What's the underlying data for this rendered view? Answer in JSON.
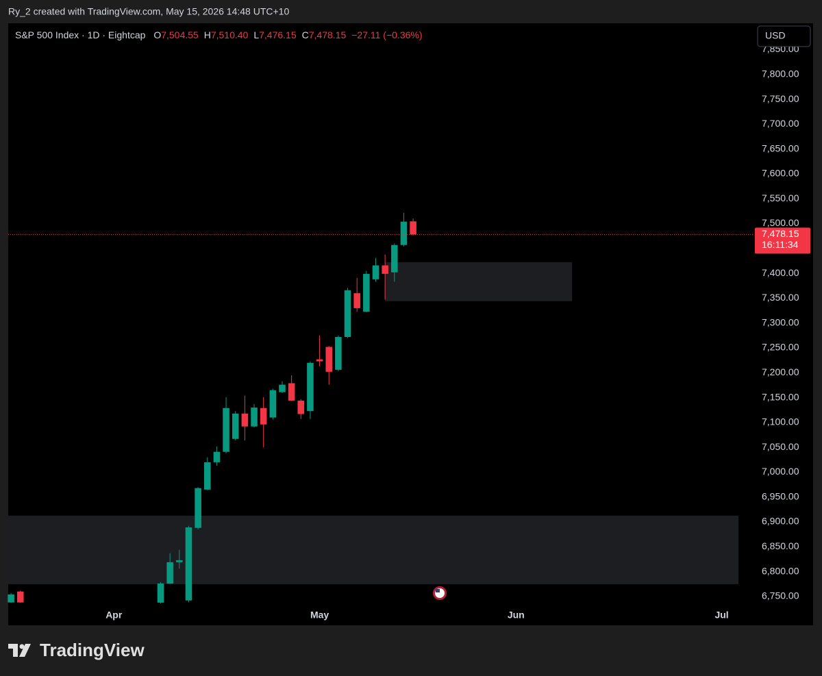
{
  "header": {
    "credit": "Ry_2 created with TradingView.com, May 15, 2026 14:48 UTC+10"
  },
  "footer": {
    "logo": "TradingView"
  },
  "chart_data": {
    "type": "candlestick",
    "title": "S&P 500 Index · 1D · Eightcap",
    "legend_values": [
      {
        "key": "O",
        "value": 7504.55,
        "label": "7,504.55"
      },
      {
        "key": "H",
        "value": 7510.4,
        "label": "7,510.40"
      },
      {
        "key": "L",
        "value": 7476.15,
        "label": "7,476.15"
      },
      {
        "key": "C",
        "value": 7478.15,
        "label": "7,478.15"
      }
    ],
    "change_label": "−27.11 (−0.36%)",
    "currency": "USD",
    "up_color": "#089981",
    "down_color": "#f23645",
    "candles": [
      {
        "x": 0,
        "open": 6738,
        "high": 6757,
        "low": 6737,
        "close": 6754
      },
      {
        "x": 1,
        "open": 6760,
        "high": 6762,
        "low": 6737,
        "close": 6738
      },
      {
        "x": 16,
        "open": 6737.6,
        "high": 6778.9,
        "low": 6736.2,
        "close": 6776.2
      },
      {
        "x": 17,
        "open": 6776,
        "high": 6837,
        "low": 6775,
        "close": 6819
      },
      {
        "x": 18,
        "open": 6819,
        "high": 6844,
        "low": 6806,
        "close": 6823
      },
      {
        "x": 19,
        "open": 6742,
        "high": 6892,
        "low": 6738,
        "close": 6889
      },
      {
        "x": 20,
        "open": 6888,
        "high": 6970,
        "low": 6885,
        "close": 6968
      },
      {
        "x": 21,
        "open": 6965,
        "high": 7030,
        "low": 6964,
        "close": 7020
      },
      {
        "x": 22,
        "open": 7020,
        "high": 7052,
        "low": 7013,
        "close": 7041
      },
      {
        "x": 23,
        "open": 7041,
        "high": 7151,
        "low": 7038,
        "close": 7129
      },
      {
        "x": 24,
        "open": 7067,
        "high": 7123,
        "low": 7064,
        "close": 7118
      },
      {
        "x": 25,
        "open": 7118,
        "high": 7154,
        "low": 7064,
        "close": 7092
      },
      {
        "x": 26,
        "open": 7092,
        "high": 7137,
        "low": 7090,
        "close": 7130
      },
      {
        "x": 27,
        "open": 7129,
        "high": 7151,
        "low": 7050,
        "close": 7096
      },
      {
        "x": 28,
        "open": 7110,
        "high": 7168,
        "low": 7106,
        "close": 7165
      },
      {
        "x": 29,
        "open": 7161,
        "high": 7183,
        "low": 7159,
        "close": 7176
      },
      {
        "x": 30,
        "open": 7179,
        "high": 7195,
        "low": 7143,
        "close": 7144
      },
      {
        "x": 31,
        "open": 7144,
        "high": 7147,
        "low": 7107,
        "close": 7117
      },
      {
        "x": 32,
        "open": 7123,
        "high": 7223,
        "low": 7107,
        "close": 7220
      },
      {
        "x": 33,
        "open": 7227,
        "high": 7275,
        "low": 7213,
        "close": 7223
      },
      {
        "x": 34,
        "open": 7252,
        "high": 7254,
        "low": 7176,
        "close": 7202
      },
      {
        "x": 35,
        "open": 7206,
        "high": 7275,
        "low": 7203,
        "close": 7272
      },
      {
        "x": 36,
        "open": 7272,
        "high": 7371,
        "low": 7270,
        "close": 7366
      },
      {
        "x": 37,
        "open": 7360,
        "high": 7391,
        "low": 7323,
        "close": 7330
      },
      {
        "x": 38,
        "open": 7323,
        "high": 7405,
        "low": 7322,
        "close": 7399
      },
      {
        "x": 39,
        "open": 7388,
        "high": 7431,
        "low": 7383,
        "close": 7416
      },
      {
        "x": 40,
        "open": 7416,
        "high": 7438,
        "low": 7347,
        "close": 7399
      },
      {
        "x": 41,
        "open": 7402,
        "high": 7460,
        "low": 7383,
        "close": 7457
      },
      {
        "x": 42,
        "open": 7457,
        "high": 7522,
        "low": 7454,
        "close": 7504
      },
      {
        "x": 43,
        "open": 7504.55,
        "high": 7510.4,
        "low": 7476.15,
        "close": 7478.15
      }
    ],
    "zones": [
      {
        "start": -0.3,
        "end": 77.8,
        "top": 6912.6,
        "bottom": 6774.8,
        "color": "#1c1e21"
      },
      {
        "start": 40,
        "end": 60,
        "top": 7422.5,
        "bottom": 7344,
        "color": "#1c1e21"
      }
    ],
    "last_price": {
      "value": 7478.15,
      "label": "7,478.15"
    },
    "countdown": "16:11:34",
    "xlim": [
      -0.3,
      79.4
    ],
    "xticks": [
      {
        "value": 11,
        "label": "Apr"
      },
      {
        "value": 33,
        "label": "May"
      },
      {
        "value": 54,
        "label": "Jun"
      },
      {
        "value": 76,
        "label": "Jul"
      }
    ],
    "ylim": [
      6692,
      7903
    ],
    "yticks": [
      {
        "value": 6750,
        "label": "6,750.00"
      },
      {
        "value": 6800,
        "label": "6,800.00"
      },
      {
        "value": 6850,
        "label": "6,850.00"
      },
      {
        "value": 6900,
        "label": "6,900.00"
      },
      {
        "value": 6950,
        "label": "6,950.00"
      },
      {
        "value": 7000,
        "label": "7,000.00"
      },
      {
        "value": 7050,
        "label": "7,050.00"
      },
      {
        "value": 7100,
        "label": "7,100.00"
      },
      {
        "value": 7150,
        "label": "7,150.00"
      },
      {
        "value": 7200,
        "label": "7,200.00"
      },
      {
        "value": 7250,
        "label": "7,250.00"
      },
      {
        "value": 7300,
        "label": "7,300.00"
      },
      {
        "value": 7350,
        "label": "7,350.00"
      },
      {
        "value": 7400,
        "label": "7,400.00"
      },
      {
        "value": 7450,
        "label": "7,450.00"
      },
      {
        "value": 7500,
        "label": "7,500.00"
      },
      {
        "value": 7550,
        "label": "7,550.00"
      },
      {
        "value": 7600,
        "label": "7,600.00"
      },
      {
        "value": 7650,
        "label": "7,650.00"
      },
      {
        "value": 7700,
        "label": "7,700.00"
      },
      {
        "value": 7750,
        "label": "7,750.00"
      },
      {
        "value": 7800,
        "label": "7,800.00"
      },
      {
        "value": 7850,
        "label": "7,850.00"
      }
    ]
  }
}
